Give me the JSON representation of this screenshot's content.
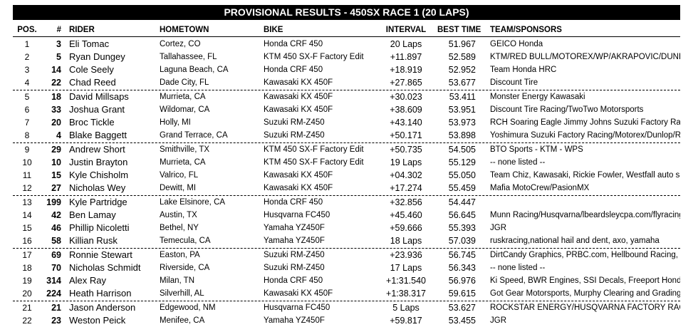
{
  "title": "PROVISIONAL RESULTS - 450SX RACE 1 (20 LAPS)",
  "headers": {
    "pos": "POS.",
    "num": "#",
    "rider": "RIDER",
    "hometown": "HOMETOWN",
    "bike": "BIKE",
    "interval": "INTERVAL",
    "best": "BEST TIME",
    "team": "TEAM/SPONSORS"
  },
  "rows": [
    {
      "pos": "1",
      "num": "3",
      "rider": "Eli Tomac",
      "hometown": "Cortez, CO",
      "bike": "Honda CRF 450",
      "interval": "20 Laps",
      "best": "51.967",
      "team": "GEICO Honda"
    },
    {
      "pos": "2",
      "num": "5",
      "rider": "Ryan Dungey",
      "hometown": "Tallahassee, FL",
      "bike": "KTM 450 SX-F Factory Edit",
      "interval": "+11.897",
      "best": "52.589",
      "team": "KTM/RED BULL/MOTOREX/WP/AKRAPOVIC/DUNLOP"
    },
    {
      "pos": "3",
      "num": "14",
      "rider": "Cole Seely",
      "hometown": "Laguna Beach, CA",
      "bike": "Honda CRF 450",
      "interval": "+18.919",
      "best": "52.952",
      "team": "Team Honda HRC"
    },
    {
      "pos": "4",
      "num": "22",
      "rider": "Chad Reed",
      "hometown": "Dade City, FL",
      "bike": "Kawasaki KX 450F",
      "interval": "+27.865",
      "best": "53.677",
      "team": "Discount Tire"
    },
    {
      "pos": "5",
      "num": "18",
      "rider": "David Millsaps",
      "hometown": "Murrieta, CA",
      "bike": "Kawasaki KX 450F",
      "interval": "+30.023",
      "best": "53.411",
      "team": "Monster Energy Kawasaki"
    },
    {
      "pos": "6",
      "num": "33",
      "rider": "Joshua Grant",
      "hometown": "Wildomar, CA",
      "bike": "Kawasaki KX 450F",
      "interval": "+38.609",
      "best": "53.951",
      "team": "Discount Tire Racing/TwoTwo Motorsports"
    },
    {
      "pos": "7",
      "num": "20",
      "rider": "Broc Tickle",
      "hometown": "Holly, MI",
      "bike": "Suzuki RM-Z450",
      "interval": "+43.140",
      "best": "53.973",
      "team": "RCH Soaring Eagle Jimmy Johns Suzuki Factory Racing"
    },
    {
      "pos": "8",
      "num": "4",
      "rider": "Blake Baggett",
      "hometown": "Grand Terrace, CA",
      "bike": "Suzuki RM-Z450",
      "interval": "+50.171",
      "best": "53.898",
      "team": "Yoshimura Suzuki Factory Racing/Motorex/Dunlop/Renthal"
    },
    {
      "pos": "9",
      "num": "29",
      "rider": "Andrew Short",
      "hometown": "Smithville, TX",
      "bike": "KTM 450 SX-F Factory Edit",
      "interval": "+50.735",
      "best": "54.505",
      "team": "BTO Sports - KTM - WPS"
    },
    {
      "pos": "10",
      "num": "10",
      "rider": "Justin Brayton",
      "hometown": "Murrieta, CA",
      "bike": "KTM 450 SX-F Factory Edit",
      "interval": "19 Laps",
      "best": "55.129",
      "team": "-- none listed --"
    },
    {
      "pos": "11",
      "num": "15",
      "rider": "Kyle Chisholm",
      "hometown": "Valrico, FL",
      "bike": "Kawasaki KX 450F",
      "interval": "+04.302",
      "best": "55.050",
      "team": "Team Chiz, Kawasaki, Rickie Fowler, Westfall auto sales"
    },
    {
      "pos": "12",
      "num": "27",
      "rider": "Nicholas Wey",
      "hometown": "Dewitt, MI",
      "bike": "Kawasaki KX 450F",
      "interval": "+17.274",
      "best": "55.459",
      "team": "Mafia MotoCrew/PasionMX"
    },
    {
      "pos": "13",
      "num": "199",
      "rider": "Kyle Partridge",
      "hometown": "Lake Elsinore, CA",
      "bike": "Honda CRF 450",
      "interval": "+32.856",
      "best": "54.447",
      "team": ""
    },
    {
      "pos": "14",
      "num": "42",
      "rider": "Ben Lamay",
      "hometown": "Austin, TX",
      "bike": "Husqvarna FC450",
      "interval": "+45.460",
      "best": "56.645",
      "team": "Munn Racing/Husqvarna/lbeardsleycpa.com/flyracing/xbrand"
    },
    {
      "pos": "15",
      "num": "46",
      "rider": "Phillip Nicoletti",
      "hometown": "Bethel, NY",
      "bike": "Yamaha YZ450F",
      "interval": "+59.666",
      "best": "55.393",
      "team": "JGR"
    },
    {
      "pos": "16",
      "num": "58",
      "rider": "Killian Rusk",
      "hometown": "Temecula, CA",
      "bike": "Yamaha YZ450F",
      "interval": "18 Laps",
      "best": "57.039",
      "team": "ruskracing,national hail and dent, axo, yamaha"
    },
    {
      "pos": "17",
      "num": "69",
      "rider": "Ronnie Stewart",
      "hometown": "Easton, PA",
      "bike": "Suzuki RM-Z450",
      "interval": "+23.936",
      "best": "56.745",
      "team": "DirtCandy Graphics, PRBC.com, Hellbound Racing, ISC"
    },
    {
      "pos": "18",
      "num": "70",
      "rider": "Nicholas Schmidt",
      "hometown": "Riverside, CA",
      "bike": "Suzuki RM-Z450",
      "interval": "17 Laps",
      "best": "56.343",
      "team": "-- none listed --"
    },
    {
      "pos": "19",
      "num": "314",
      "rider": "Alex Ray",
      "hometown": "Milan, TN",
      "bike": "Honda CRF 450",
      "interval": "+1:31.540",
      "best": "56.976",
      "team": "Ki Speed, BWR Engines, SSI Decals, Freeport Honda-Ka"
    },
    {
      "pos": "20",
      "num": "224",
      "rider": "Heath Harrison",
      "hometown": "Silverhill, AL",
      "bike": "Kawasaki KX 450F",
      "interval": "+1:38.317",
      "best": "59.615",
      "team": "Got Gear Motorsports, Murphy Clearing and Grading, FM"
    },
    {
      "pos": "21",
      "num": "21",
      "rider": "Jason Anderson",
      "hometown": "Edgewood, NM",
      "bike": "Husqvarna FC450",
      "interval": "5 Laps",
      "best": "53.627",
      "team": "ROCKSTAR ENERGY/HUSQVARNA FACTORY RACING"
    },
    {
      "pos": "22",
      "num": "23",
      "rider": "Weston Peick",
      "hometown": "Menifee, CA",
      "bike": "Yamaha YZ450F",
      "interval": "+59.817",
      "best": "53.455",
      "team": "JGR"
    }
  ]
}
